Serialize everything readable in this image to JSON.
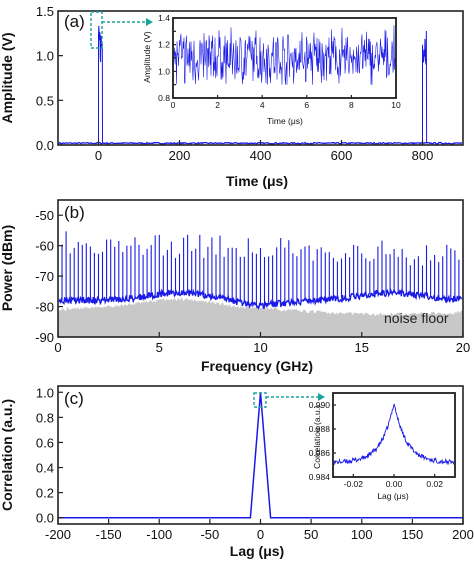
{
  "chart_data": [
    {
      "panel": "(a)",
      "type": "line",
      "xlabel": "Time (μs)",
      "ylabel": "Amplitude (V)",
      "xlim": [
        -100,
        900
      ],
      "ylim": [
        0.0,
        1.5
      ],
      "xticks": [
        0,
        200,
        400,
        600,
        800
      ],
      "yticks": [
        0.0,
        0.5,
        1.0,
        1.5
      ],
      "xtick_labels": [
        "0",
        "200",
        "400",
        "600",
        "800"
      ],
      "ytick_labels": [
        "0.0",
        "0.5",
        "1.0",
        "1.5"
      ],
      "baseline": 0.02,
      "pulses": [
        {
          "start": 0,
          "end": 10,
          "low": 0.9,
          "high": 1.35
        },
        {
          "start": 800,
          "end": 810,
          "low": 0.9,
          "high": 1.35
        }
      ],
      "color": "#1a1ae6",
      "inset": {
        "type": "line",
        "xlabel": "Time (μs)",
        "ylabel": "Amplitude (V)",
        "xlim": [
          0,
          10
        ],
        "ylim": [
          0.8,
          1.4
        ],
        "xticks": [
          0,
          2,
          4,
          6,
          8,
          10
        ],
        "yticks": [
          0.8,
          0.9,
          1.0,
          1.1,
          1.2,
          1.3,
          1.4
        ],
        "xtick_labels": [
          "0",
          "2",
          "4",
          "6",
          "8",
          "10"
        ],
        "ytick_labels": [
          "0.8",
          "",
          "1.0",
          "",
          "1.2",
          "",
          "1.4"
        ],
        "mean": 1.1,
        "range": [
          0.9,
          1.35
        ]
      }
    },
    {
      "panel": "(b)",
      "type": "line",
      "xlabel": "Frequency (GHz)",
      "ylabel": "Power (dBm)",
      "xlim": [
        0,
        20
      ],
      "ylim": [
        -90,
        -45
      ],
      "xticks": [
        0,
        5,
        10,
        15,
        20
      ],
      "yticks": [
        -90,
        -80,
        -70,
        -60,
        -50
      ],
      "xtick_labels": [
        "0",
        "5",
        "10",
        "15",
        "20"
      ],
      "ytick_labels": [
        "-90",
        "-80",
        "-70",
        "-60",
        "-50"
      ],
      "comb_spacing_ghz": 0.2,
      "comb_peak_range_dbm": [
        -67,
        -55
      ],
      "signal_floor_dbm": -78,
      "noise_floor_dbm": -81,
      "noise_floor_label": "noise floor",
      "color": "#1a1ae6",
      "noise_color": "#c8c8c8"
    },
    {
      "panel": "(c)",
      "type": "line",
      "xlabel": "Lag (μs)",
      "ylabel": "Correlation (a.u.)",
      "xlim": [
        -200,
        200
      ],
      "ylim": [
        -0.05,
        1.05
      ],
      "xticks": [
        -200,
        -150,
        -100,
        -50,
        0,
        50,
        100,
        150,
        200
      ],
      "yticks": [
        0.0,
        0.2,
        0.4,
        0.6,
        0.8,
        1.0
      ],
      "xtick_labels": [
        "-200",
        "-150",
        "-100",
        "-50",
        "0",
        "50",
        "100",
        "150",
        "200"
      ],
      "ytick_labels": [
        "0.0",
        "0.2",
        "0.4",
        "0.6",
        "0.8",
        "1.0"
      ],
      "peak": {
        "x": 0,
        "y": 1.0,
        "half_width": 10
      },
      "baseline": 0.0,
      "color": "#1a1ae6",
      "inset": {
        "type": "line",
        "xlabel": "Lag (μs)",
        "ylabel": "Correlation (a.u.)",
        "xlim": [
          -0.03,
          0.03
        ],
        "ylim": [
          0.984,
          0.991
        ],
        "xticks": [
          -0.02,
          0.0,
          0.02
        ],
        "yticks": [
          0.984,
          0.986,
          0.988,
          0.99
        ],
        "xtick_labels": [
          "-0.02",
          "0.00",
          "0.02"
        ],
        "ytick_labels": [
          "0.984",
          "0.986",
          "0.988",
          "0.990"
        ],
        "peak": {
          "x": 0.0,
          "y": 0.9902
        },
        "edge_value": 0.9852
      }
    }
  ]
}
